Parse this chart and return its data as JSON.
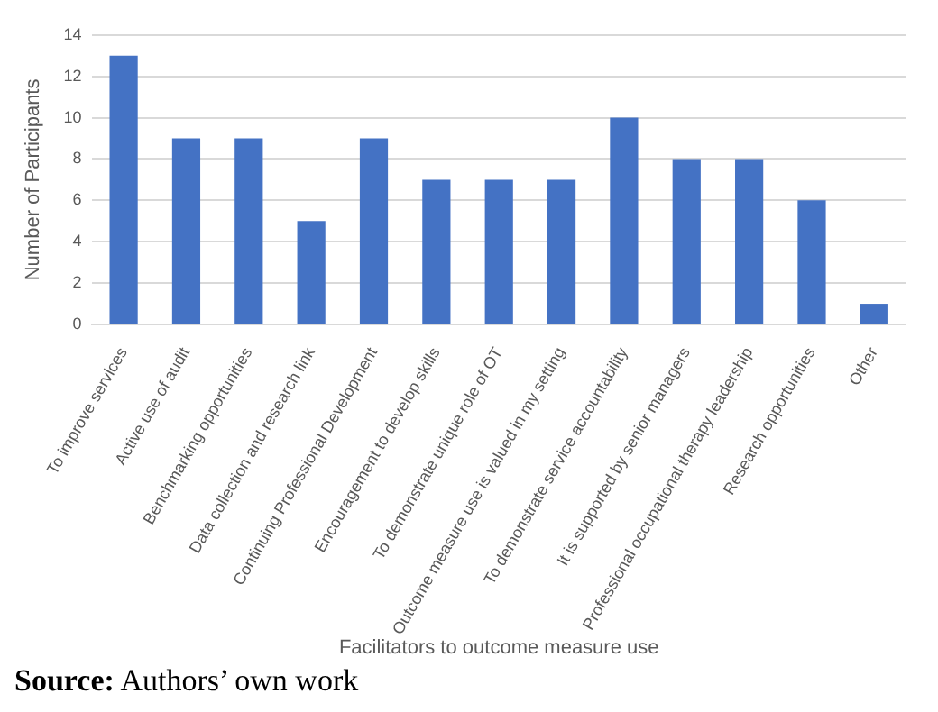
{
  "chart_data": {
    "type": "bar",
    "xlabel": "Facilitators to outcome measure use",
    "ylabel": "Number of Participants",
    "categories": [
      "To improve services",
      "Active use of audit",
      "Benchmarking opportunities",
      "Data collection and research link",
      "Continuing Professional Development",
      "Encouragement to develop skills",
      "To demonstrate unique role of OT",
      "Outcome measure use is valued in my setting",
      "To demonstrate service accountability",
      "It is supported by senior managers",
      "Professional occupational therapy leadership",
      "Research opportunities",
      "Other"
    ],
    "values": [
      13,
      9,
      9,
      5,
      9,
      7,
      7,
      7,
      10,
      8,
      8,
      6,
      1
    ],
    "color": "#4472c4",
    "ylim": [
      0,
      14
    ],
    "yticks": [
      0,
      2,
      4,
      6,
      8,
      10,
      12,
      14
    ],
    "grid": "y",
    "annotations": [
      "Source: Authors’ own work"
    ]
  }
}
